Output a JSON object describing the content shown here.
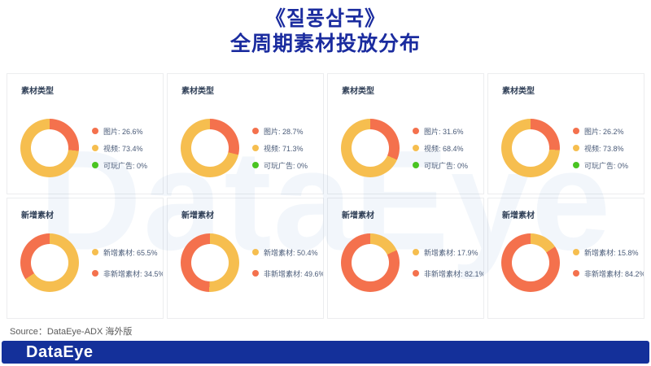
{
  "header": {
    "title_line1": "《질풍삼국》",
    "title_line2": "全周期素材投放分布"
  },
  "colors": {
    "orange": "#F4714D",
    "yellow": "#F6BE4F",
    "green": "#49C421",
    "title_blue": "#1B2C9F",
    "footer_blue": "#14309A",
    "legend_text": "#4A5B78",
    "panel_title_text": "#2E3E56"
  },
  "watermark": {
    "text": "DataEye"
  },
  "footer": {
    "source": "Source：DataEye-ADX 海外版",
    "logo_text": "DataEye"
  },
  "chart_data": [
    {
      "type": "pie",
      "title": "素材类型",
      "donut": true,
      "legend_position": "right",
      "unit": "%",
      "segments": [
        {
          "label": "图片",
          "value": 26.6,
          "color": "orange",
          "display": "图片: 26.6%"
        },
        {
          "label": "视频",
          "value": 73.4,
          "color": "yellow",
          "display": "视频: 73.4%"
        },
        {
          "label": "可玩广告",
          "value": 0,
          "color": "green",
          "display": "可玩广告: 0%"
        }
      ]
    },
    {
      "type": "pie",
      "title": "素材类型",
      "donut": true,
      "legend_position": "right",
      "unit": "%",
      "segments": [
        {
          "label": "图片",
          "value": 28.7,
          "color": "orange",
          "display": "图片: 28.7%"
        },
        {
          "label": "视频",
          "value": 71.3,
          "color": "yellow",
          "display": "视频: 71.3%"
        },
        {
          "label": "可玩广告",
          "value": 0,
          "color": "green",
          "display": "可玩广告: 0%"
        }
      ]
    },
    {
      "type": "pie",
      "title": "素材类型",
      "donut": true,
      "legend_position": "right",
      "unit": "%",
      "segments": [
        {
          "label": "图片",
          "value": 31.6,
          "color": "orange",
          "display": "图片: 31.6%"
        },
        {
          "label": "视频",
          "value": 68.4,
          "color": "yellow",
          "display": "视频: 68.4%"
        },
        {
          "label": "可玩广告",
          "value": 0,
          "color": "green",
          "display": "可玩广告: 0%"
        }
      ]
    },
    {
      "type": "pie",
      "title": "素材类型",
      "donut": true,
      "legend_position": "right",
      "unit": "%",
      "segments": [
        {
          "label": "图片",
          "value": 26.2,
          "color": "orange",
          "display": "图片: 26.2%"
        },
        {
          "label": "视频",
          "value": 73.8,
          "color": "yellow",
          "display": "视频: 73.8%"
        },
        {
          "label": "可玩广告",
          "value": 0,
          "color": "green",
          "display": "可玩广告: 0%"
        }
      ]
    },
    {
      "type": "pie",
      "title": "新增素材",
      "donut": true,
      "legend_position": "right",
      "unit": "%",
      "segments": [
        {
          "label": "新增素材",
          "value": 65.5,
          "color": "yellow",
          "display": "新增素材: 65.5%"
        },
        {
          "label": "非新增素材",
          "value": 34.5,
          "color": "orange",
          "display": "非新增素材: 34.5%"
        }
      ]
    },
    {
      "type": "pie",
      "title": "新增素材",
      "donut": true,
      "legend_position": "right",
      "unit": "%",
      "segments": [
        {
          "label": "新增素材",
          "value": 50.4,
          "color": "yellow",
          "display": "新增素材: 50.4%"
        },
        {
          "label": "非新增素材",
          "value": 49.6,
          "color": "orange",
          "display": "非新增素材: 49.6%"
        }
      ]
    },
    {
      "type": "pie",
      "title": "新增素材",
      "donut": true,
      "legend_position": "right",
      "unit": "%",
      "segments": [
        {
          "label": "新增素材",
          "value": 17.9,
          "color": "yellow",
          "display": "新增素材: 17.9%"
        },
        {
          "label": "非新增素材",
          "value": 82.1,
          "color": "orange",
          "display": "非新增素材: 82.1%"
        }
      ]
    },
    {
      "type": "pie",
      "title": "新增素材",
      "donut": true,
      "legend_position": "right",
      "unit": "%",
      "segments": [
        {
          "label": "新增素材",
          "value": 15.8,
          "color": "yellow",
          "display": "新增素材: 15.8%"
        },
        {
          "label": "非新增素材",
          "value": 84.2,
          "color": "orange",
          "display": "非新增素材: 84.2%"
        }
      ]
    }
  ]
}
